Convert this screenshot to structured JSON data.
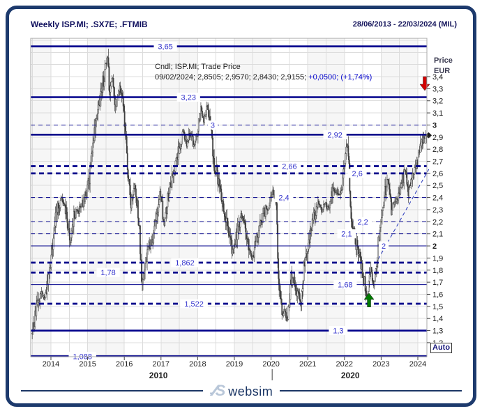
{
  "window": {
    "title": "Weekly ISP.MI; .SX7E; .FTMIB",
    "date_range": "28/06/2013 - 22/03/2024 (MIL)"
  },
  "annotation": {
    "line1": "Cndl; ISP.MI; Trade Price",
    "line2_plain": "09/02/2024; 2,8505; 2,9570; 2,8430; 2,9155; ",
    "line2_change": "+0,0500; (+1,74%)"
  },
  "y_axis": {
    "title_line1": "Price",
    "title_line2": "EUR",
    "auto_button": "Auto",
    "ticks": [
      {
        "v": 3.4,
        "label": "3,4"
      },
      {
        "v": 3.3,
        "label": "3,3"
      },
      {
        "v": 3.2,
        "label": "3,2"
      },
      {
        "v": 3.1,
        "label": "3,1"
      },
      {
        "v": 3.0,
        "label": "3"
      },
      {
        "v": 2.9,
        "label": "2,9"
      },
      {
        "v": 2.8,
        "label": "2,8"
      },
      {
        "v": 2.7,
        "label": "2,7"
      },
      {
        "v": 2.6,
        "label": "2,6"
      },
      {
        "v": 2.5,
        "label": "2,5"
      },
      {
        "v": 2.4,
        "label": "2,4"
      },
      {
        "v": 2.3,
        "label": "2,3"
      },
      {
        "v": 2.2,
        "label": "2,2"
      },
      {
        "v": 2.1,
        "label": "2,1"
      },
      {
        "v": 2.0,
        "label": "2"
      },
      {
        "v": 1.9,
        "label": "1,9"
      },
      {
        "v": 1.8,
        "label": "1,8"
      },
      {
        "v": 1.7,
        "label": "1,7"
      },
      {
        "v": 1.6,
        "label": "1,6"
      },
      {
        "v": 1.5,
        "label": "1,5"
      },
      {
        "v": 1.4,
        "label": "1,4"
      },
      {
        "v": 1.3,
        "label": "1,3"
      },
      {
        "v": 1.2,
        "label": "1,2"
      }
    ]
  },
  "x_axis": {
    "years": [
      {
        "v": 2014,
        "label": "2014"
      },
      {
        "v": 2015,
        "label": "2015"
      },
      {
        "v": 2016,
        "label": "2016"
      },
      {
        "v": 2017,
        "label": "2017"
      },
      {
        "v": 2018,
        "label": "2018"
      },
      {
        "v": 2019,
        "label": "2019"
      },
      {
        "v": 2020,
        "label": "2020"
      },
      {
        "v": 2021,
        "label": "2021"
      },
      {
        "v": 2022,
        "label": "2022"
      },
      {
        "v": 2023,
        "label": "2023"
      },
      {
        "v": 2024,
        "label": "2024"
      }
    ],
    "decades": [
      {
        "label": "2010",
        "x_year": 2016.93
      },
      {
        "label": "2020",
        "x_year": 2022.16
      }
    ],
    "separator_year": 2020.03
  },
  "chart_data": {
    "type": "candlestick",
    "series_name": "ISP.MI weekly trade price",
    "title": "Weekly ISP.MI; .SX7E; .FTMIB",
    "x_range": [
      2013.49,
      2024.25
    ],
    "y_range": [
      1.084,
      3.717
    ],
    "grid": true,
    "levels": [
      {
        "price": 3.65,
        "label": "3,65",
        "style": "solid-bold",
        "label_x_year": 2017.12
      },
      {
        "price": 3.23,
        "label": "3,23",
        "style": "solid-bold",
        "label_x_year": 2017.75
      },
      {
        "price": 3.0,
        "label": "3",
        "style": "dash-thin",
        "label_x_year": 2018.41
      },
      {
        "price": 2.92,
        "label": "2,92",
        "style": "solid-bold",
        "label_x_year": 2021.74
      },
      {
        "price": 2.66,
        "label": "2,66",
        "style": "dash-bold",
        "label_x_year": 2020.5
      },
      {
        "price": 2.6,
        "label": "2,6",
        "style": "dash-bold",
        "label_x_year": 2022.35
      },
      {
        "price": 2.4,
        "label": "2,4",
        "style": "dash-thin",
        "label_x_year": 2020.35
      },
      {
        "price": 2.2,
        "label": "2,2",
        "style": "dash-thin",
        "label_x_year": 2022.5
      },
      {
        "price": 2.1,
        "label": "2,1",
        "style": "dash-thin",
        "label_x_year": 2022.06
      },
      {
        "price": 2.0,
        "label": "2",
        "style": "solid-thin",
        "label_x_year": 2023.07
      },
      {
        "price": 1.862,
        "label": "1,862",
        "style": "dash-bold",
        "label_x_year": 2017.65
      },
      {
        "price": 1.78,
        "label": "1,78",
        "style": "dash-bold",
        "label_x_year": 2015.56
      },
      {
        "price": 1.68,
        "label": "1,68",
        "style": "solid-thin",
        "label_x_year": 2022.02
      },
      {
        "price": 1.522,
        "label": "1,522",
        "style": "dash-bold",
        "label_x_year": 2017.9
      },
      {
        "price": 1.3,
        "label": "1,3",
        "style": "solid-bold",
        "label_x_year": 2021.83
      },
      {
        "price": 1.088,
        "label": "1,088",
        "style": "solid-bold",
        "label_x_year": 2014.86
      }
    ],
    "price_path": [
      [
        2013.49,
        1.28
      ],
      [
        2013.55,
        1.35
      ],
      [
        2013.65,
        1.5
      ],
      [
        2013.75,
        1.62
      ],
      [
        2013.85,
        1.55
      ],
      [
        2013.95,
        1.72
      ],
      [
        2014.05,
        1.95
      ],
      [
        2014.15,
        2.25
      ],
      [
        2014.3,
        2.4
      ],
      [
        2014.45,
        2.25
      ],
      [
        2014.55,
        2.05
      ],
      [
        2014.65,
        2.25
      ],
      [
        2014.8,
        2.3
      ],
      [
        2014.95,
        2.4
      ],
      [
        2015.05,
        2.5
      ],
      [
        2015.15,
        2.85
      ],
      [
        2015.3,
        3.1
      ],
      [
        2015.4,
        3.3
      ],
      [
        2015.5,
        3.45
      ],
      [
        2015.56,
        3.58
      ],
      [
        2015.62,
        3.25
      ],
      [
        2015.7,
        3.4
      ],
      [
        2015.78,
        3.15
      ],
      [
        2015.88,
        3.3
      ],
      [
        2015.97,
        3.25
      ],
      [
        2016.05,
        2.95
      ],
      [
        2016.12,
        2.55
      ],
      [
        2016.2,
        2.35
      ],
      [
        2016.3,
        2.5
      ],
      [
        2016.42,
        2.2
      ],
      [
        2016.5,
        1.62
      ],
      [
        2016.58,
        1.85
      ],
      [
        2016.68,
        2.0
      ],
      [
        2016.8,
        2.05
      ],
      [
        2016.92,
        2.3
      ],
      [
        2017.0,
        2.45
      ],
      [
        2017.1,
        2.2
      ],
      [
        2017.2,
        2.4
      ],
      [
        2017.35,
        2.6
      ],
      [
        2017.5,
        2.8
      ],
      [
        2017.62,
        2.95
      ],
      [
        2017.72,
        2.85
      ],
      [
        2017.82,
        2.95
      ],
      [
        2017.92,
        2.8
      ],
      [
        2018.0,
        2.95
      ],
      [
        2018.1,
        3.15
      ],
      [
        2018.18,
        3.05
      ],
      [
        2018.28,
        3.18
      ],
      [
        2018.38,
        2.95
      ],
      [
        2018.48,
        2.65
      ],
      [
        2018.58,
        2.55
      ],
      [
        2018.68,
        2.35
      ],
      [
        2018.78,
        2.25
      ],
      [
        2018.88,
        2.05
      ],
      [
        2018.98,
        1.95
      ],
      [
        2019.08,
        2.1
      ],
      [
        2019.2,
        2.25
      ],
      [
        2019.3,
        2.15
      ],
      [
        2019.42,
        1.95
      ],
      [
        2019.52,
        1.9
      ],
      [
        2019.62,
        2.05
      ],
      [
        2019.75,
        2.2
      ],
      [
        2019.88,
        2.3
      ],
      [
        2019.98,
        2.35
      ],
      [
        2020.08,
        2.45
      ],
      [
        2020.16,
        2.35
      ],
      [
        2020.22,
        1.75
      ],
      [
        2020.3,
        1.45
      ],
      [
        2020.4,
        1.48
      ],
      [
        2020.44,
        1.38
      ],
      [
        2020.48,
        1.42
      ],
      [
        2020.56,
        1.75
      ],
      [
        2020.65,
        1.7
      ],
      [
        2020.75,
        1.6
      ],
      [
        2020.82,
        1.52
      ],
      [
        2020.92,
        1.85
      ],
      [
        2021.0,
        1.95
      ],
      [
        2021.1,
        2.1
      ],
      [
        2021.2,
        2.25
      ],
      [
        2021.3,
        2.35
      ],
      [
        2021.4,
        2.3
      ],
      [
        2021.5,
        2.35
      ],
      [
        2021.6,
        2.3
      ],
      [
        2021.7,
        2.45
      ],
      [
        2021.8,
        2.45
      ],
      [
        2021.9,
        2.4
      ],
      [
        2022.0,
        2.6
      ],
      [
        2022.08,
        2.85
      ],
      [
        2022.1,
        2.88
      ],
      [
        2022.14,
        2.65
      ],
      [
        2022.2,
        2.25
      ],
      [
        2022.3,
        2.05
      ],
      [
        2022.4,
        1.95
      ],
      [
        2022.5,
        1.8
      ],
      [
        2022.6,
        1.65
      ],
      [
        2022.64,
        1.58
      ],
      [
        2022.74,
        1.78
      ],
      [
        2022.82,
        1.68
      ],
      [
        2022.92,
        1.95
      ],
      [
        2023.0,
        2.15
      ],
      [
        2023.1,
        2.4
      ],
      [
        2023.2,
        2.55
      ],
      [
        2023.3,
        2.3
      ],
      [
        2023.4,
        2.35
      ],
      [
        2023.5,
        2.4
      ],
      [
        2023.6,
        2.55
      ],
      [
        2023.68,
        2.62
      ],
      [
        2023.76,
        2.45
      ],
      [
        2023.85,
        2.55
      ],
      [
        2023.95,
        2.65
      ],
      [
        2024.02,
        2.72
      ],
      [
        2024.08,
        2.8
      ],
      [
        2024.15,
        2.88
      ],
      [
        2024.22,
        2.9155
      ]
    ],
    "last_candle": {
      "date": "09/02/2024",
      "open": 2.8505,
      "high": 2.957,
      "low": 2.843,
      "close": 2.9155
    },
    "trendline": {
      "x1_year": 2022.92,
      "y1_price": 1.89,
      "x2_year": 2024.3,
      "y2_price": 2.634,
      "style": "dash-thin"
    },
    "arrows": [
      {
        "direction": "down",
        "color": "#d40000",
        "x_year": 2024.19,
        "tip_price": 3.285
      },
      {
        "direction": "up",
        "color": "#007a00",
        "x_year": 2022.67,
        "tip_price": 1.61
      }
    ],
    "last_price_marker": {
      "price": 2.915
    }
  },
  "footer": {
    "brand_dot": "•",
    "brand_mark": "⁄⁄S",
    "brand_name": "websim"
  },
  "colors": {
    "frame": "#1d3a6d",
    "level_line": "#00008b",
    "level_label": "#3333cc",
    "candle": "#3f3f3f",
    "grid": "#dcdcdc",
    "stripe": "#f6f6f6",
    "trend": "#2233bb",
    "plot_border": "#a8a8a8",
    "arrow_down": "#d40000",
    "arrow_up": "#007a00",
    "change_text": "#0000cc"
  }
}
